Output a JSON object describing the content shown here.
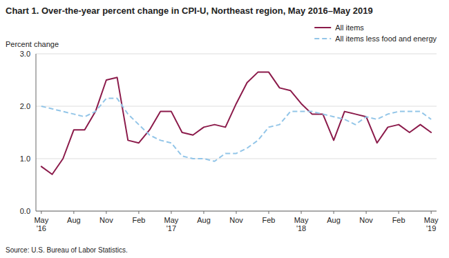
{
  "chart_data": {
    "type": "line",
    "title": "Chart 1. Over-the-year percent change in CPI-U, Northeast region, May 2016–May 2019",
    "y_label": "Percent change",
    "source": "Source: U.S. Bureau of Labor Statistics.",
    "categories": [
      "May\n'16",
      null,
      null,
      "Aug",
      null,
      null,
      "Nov",
      null,
      null,
      "Feb",
      null,
      null,
      "May\n'17",
      null,
      null,
      "Aug",
      null,
      null,
      "Nov",
      null,
      null,
      "Feb",
      null,
      null,
      "May\n'18",
      null,
      null,
      "Aug",
      null,
      null,
      "Nov",
      null,
      null,
      "Feb",
      null,
      null,
      "May\n'19"
    ],
    "ylim": [
      0.0,
      3.0
    ],
    "yticks": [
      {
        "value": 0.0,
        "label": "0.0"
      },
      {
        "value": 1.0,
        "label": "1.0"
      },
      {
        "value": 2.0,
        "label": "2.0"
      },
      {
        "value": 3.0,
        "label": "3.0"
      }
    ],
    "grid": true,
    "legend": "upper right",
    "series": [
      {
        "name": "All items",
        "color": "#8B1A4A",
        "line_style": "solid",
        "values": [
          0.85,
          0.7,
          1.0,
          1.55,
          1.55,
          1.9,
          2.5,
          2.55,
          1.35,
          1.3,
          1.55,
          1.9,
          1.9,
          1.5,
          1.45,
          1.6,
          1.65,
          1.6,
          2.05,
          2.45,
          2.65,
          2.65,
          2.35,
          2.3,
          2.05,
          1.85,
          1.85,
          1.35,
          1.9,
          1.85,
          1.8,
          1.3,
          1.6,
          1.65,
          1.5,
          1.65,
          1.5
        ]
      },
      {
        "name": "All items less food and energy",
        "color": "#92C5E8",
        "line_style": "dashed",
        "values": [
          2.0,
          1.95,
          1.9,
          1.85,
          1.8,
          1.9,
          2.15,
          2.15,
          1.85,
          1.65,
          1.45,
          1.35,
          1.3,
          1.05,
          1.0,
          1.0,
          0.95,
          1.1,
          1.1,
          1.2,
          1.35,
          1.6,
          1.65,
          1.9,
          1.9,
          1.9,
          1.85,
          1.8,
          1.75,
          1.65,
          1.8,
          1.75,
          1.85,
          1.9,
          1.9,
          1.9,
          1.75
        ]
      }
    ]
  }
}
